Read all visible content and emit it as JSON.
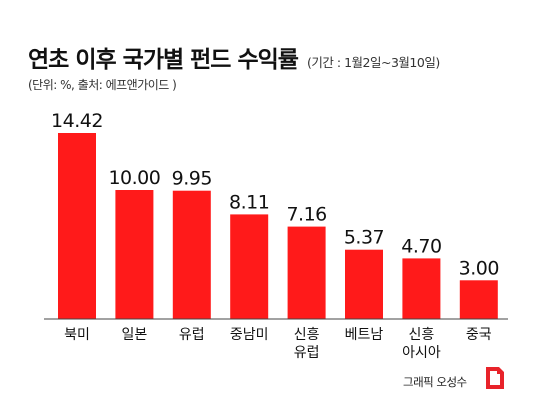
{
  "header": {
    "title": "연초 이후 국가별 펀드 수익률",
    "subtitle": "(기간 : 1월2일~3월10일)",
    "unit_note": "(단위: %, 출처: 에프앤가이드 )"
  },
  "chart_data": {
    "type": "bar",
    "categories": [
      "북미",
      "일본",
      "유럽",
      "중남미",
      "신흥\n유럽",
      "베트남",
      "신흥\n아시아",
      "중국"
    ],
    "values": [
      14.42,
      10.0,
      9.95,
      8.11,
      7.16,
      5.37,
      4.7,
      3.0
    ],
    "value_labels": [
      "14.42",
      "10.00",
      "9.95",
      "8.11",
      "7.16",
      "5.37",
      "4.70",
      "3.00"
    ],
    "ylim": [
      0,
      14.42
    ],
    "bar_color": "#ff1a1a",
    "grid": false,
    "legend": "none"
  },
  "footer": {
    "credit": "그래픽 오성수",
    "logo_icon": "newspaper-logo-icon",
    "logo_color": "#e8232a"
  }
}
